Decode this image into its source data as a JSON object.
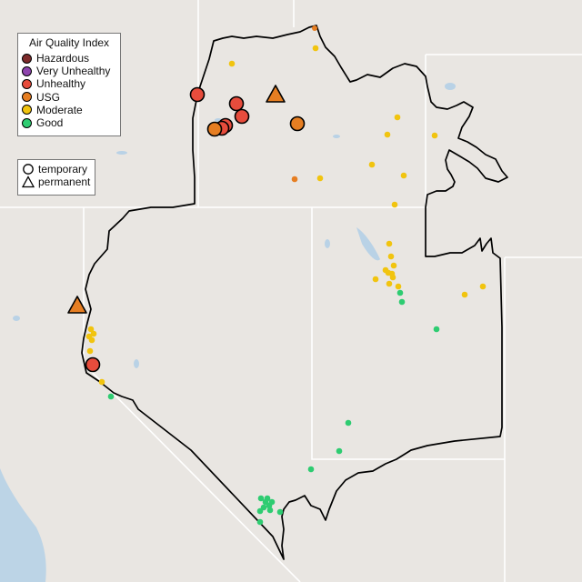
{
  "map": {
    "type": "air-quality-monitor-map",
    "colors": {
      "land": "#e9e6e2",
      "water": "#b9d2e6",
      "state_lines": "#ffffff",
      "border": "#000000"
    }
  },
  "legend": {
    "title": "Air Quality Index",
    "categories": [
      {
        "label": "Hazardous",
        "color": "#7e2b2b"
      },
      {
        "label": "Very Unhealthy",
        "color": "#8e44ad"
      },
      {
        "label": "Unhealthy",
        "color": "#e74c3c"
      },
      {
        "label": "USG",
        "color": "#e67e22"
      },
      {
        "label": "Moderate",
        "color": "#f1c40f"
      },
      {
        "label": "Good",
        "color": "#2ecc71"
      }
    ]
  },
  "monitor_types": [
    {
      "label": "temporary",
      "shape": "circle"
    },
    {
      "label": "permanent",
      "shape": "triangle"
    }
  ]
}
